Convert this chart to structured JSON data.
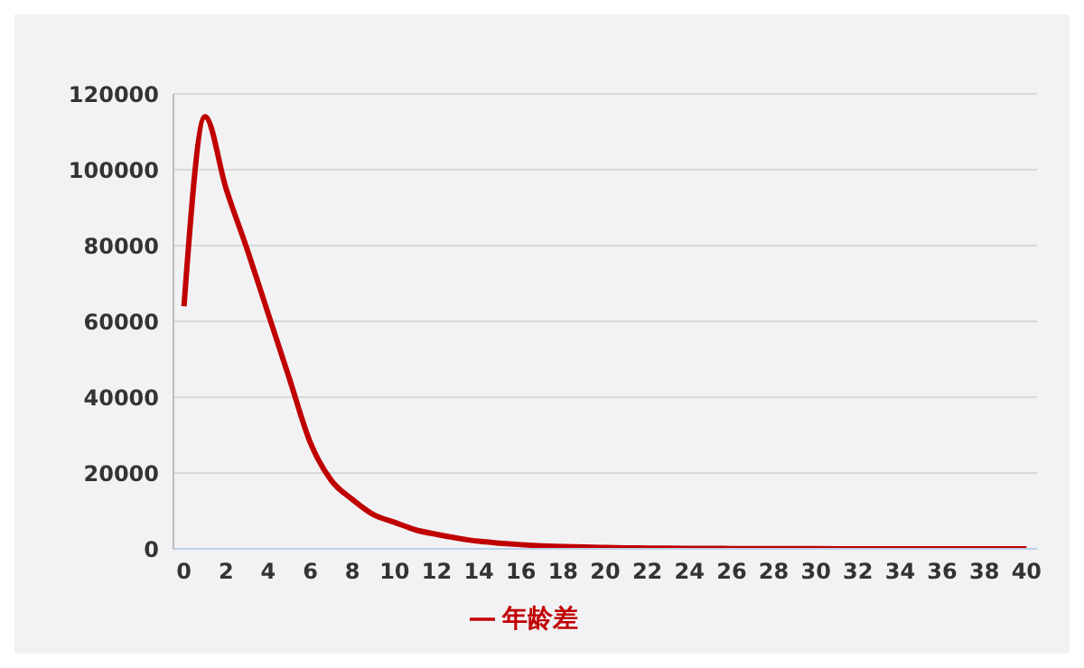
{
  "chart_data": {
    "type": "line",
    "x": [
      0,
      1,
      2,
      3,
      4,
      5,
      6,
      7,
      8,
      9,
      10,
      11,
      12,
      13,
      14,
      15,
      16,
      17,
      18,
      19,
      20,
      21,
      22,
      23,
      24,
      25,
      26,
      27,
      28,
      29,
      30,
      31,
      32,
      33,
      34,
      35,
      36,
      37,
      38,
      39,
      40
    ],
    "series": [
      {
        "name": "年龄差",
        "color": "#c00000",
        "values": [
          64000,
          114000,
          95000,
          79000,
          62000,
          45000,
          28000,
          18000,
          13000,
          9000,
          7000,
          5000,
          3800,
          2800,
          2000,
          1500,
          1100,
          800,
          600,
          450,
          350,
          250,
          200,
          150,
          120,
          100,
          80,
          60,
          50,
          40,
          30,
          25,
          20,
          15,
          10,
          10,
          5,
          5,
          5,
          5,
          5
        ]
      }
    ],
    "xlim": [
      -0.5,
      40.5
    ],
    "xticks": [
      0,
      2,
      4,
      6,
      8,
      10,
      12,
      14,
      16,
      18,
      20,
      22,
      24,
      26,
      28,
      30,
      32,
      34,
      36,
      38,
      40
    ],
    "ylim": [
      0,
      120000
    ],
    "yticks": [
      0,
      20000,
      40000,
      60000,
      80000,
      100000,
      120000
    ],
    "grid": "y",
    "legend": "bottom",
    "marker": "none",
    "line_style": "solid"
  }
}
